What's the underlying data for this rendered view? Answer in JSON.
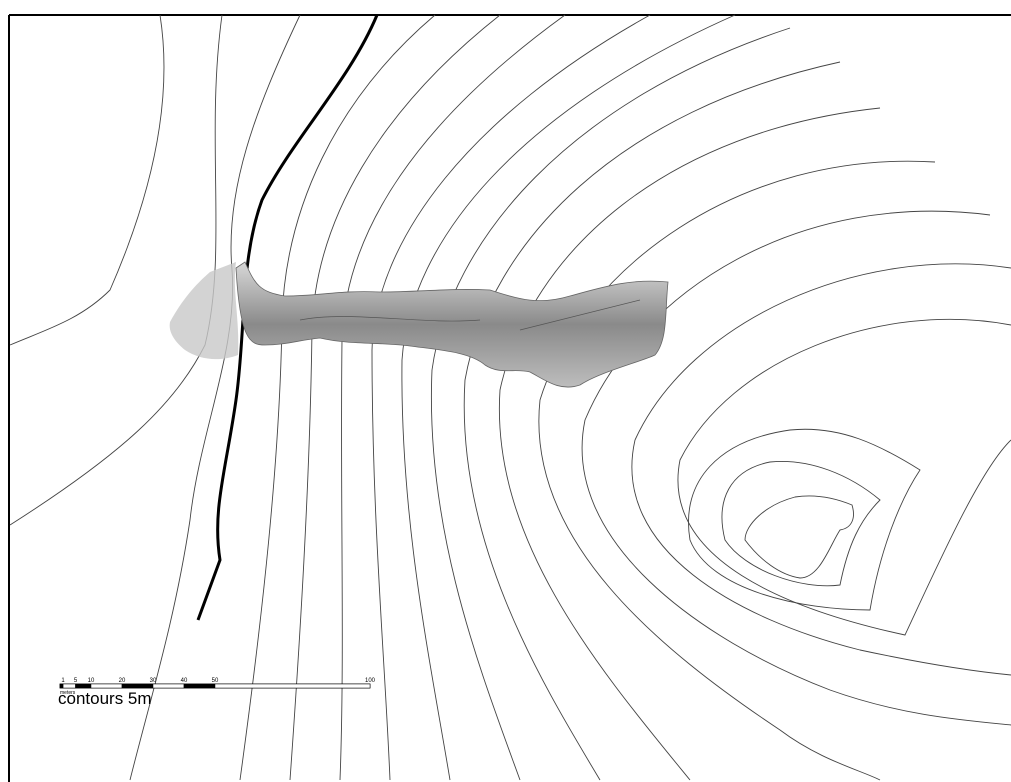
{
  "scale_bar": {
    "ticks": [
      1,
      5,
      10,
      20,
      30,
      40,
      50,
      100
    ],
    "unit": "meters"
  },
  "caption": "contours 5m"
}
